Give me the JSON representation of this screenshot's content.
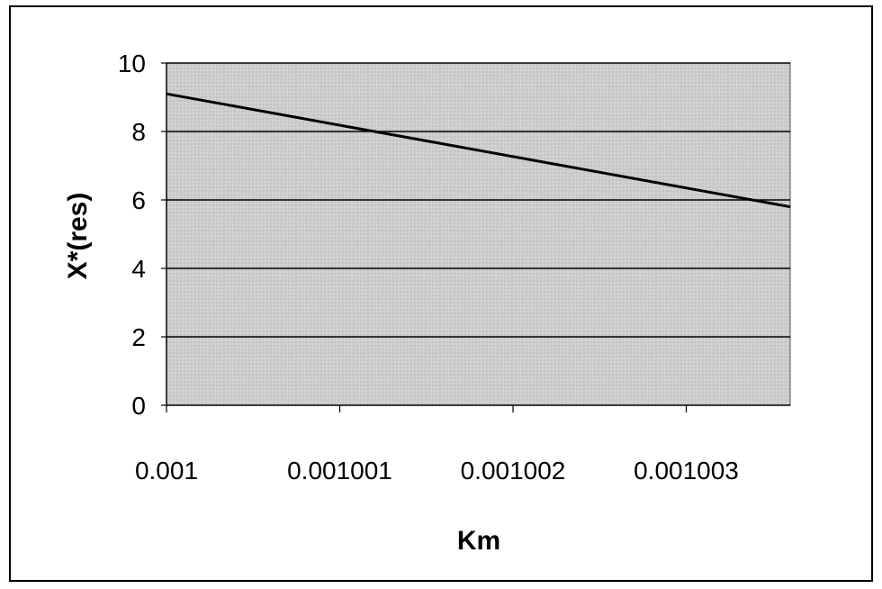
{
  "chart_data": {
    "type": "line",
    "title": "",
    "xlabel": "Km",
    "ylabel": "X*(res)",
    "x_ticks": [
      "0.001",
      "0.001001",
      "0.001002",
      "0.001003"
    ],
    "x_tick_values": [
      0.001,
      0.001001,
      0.001002,
      0.001003
    ],
    "y_ticks": [
      "0",
      "2",
      "4",
      "6",
      "8",
      "10"
    ],
    "y_tick_values": [
      0,
      2,
      4,
      6,
      8,
      10
    ],
    "xlim": [
      0.001,
      0.0010036
    ],
    "ylim": [
      0,
      10
    ],
    "grid": "horizontal",
    "legend": "none",
    "series": [
      {
        "x": [
          0.001,
          0.0010036
        ],
        "y": [
          9.1,
          5.8
        ]
      }
    ],
    "colors": {
      "plot_area": "#c9c9c9",
      "line": "#000000",
      "gridline": "#000000"
    }
  }
}
